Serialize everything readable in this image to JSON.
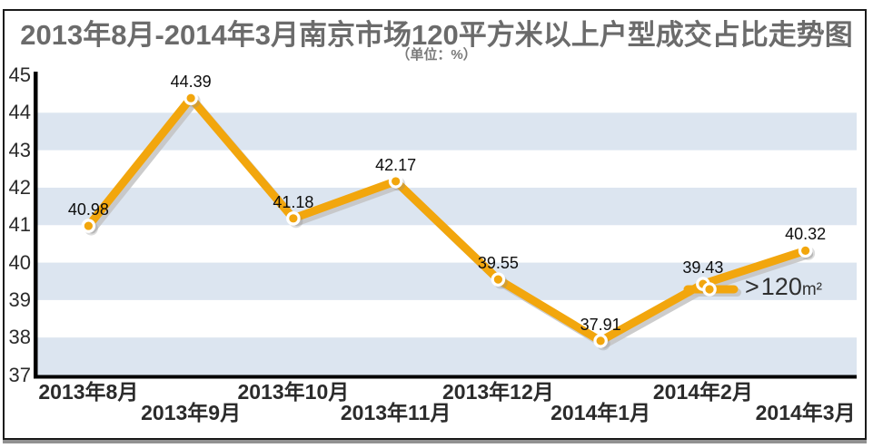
{
  "chart_data": {
    "type": "line",
    "title": "2013年8月-2014年3月南京市场120平方米以上户型成交占比走势图",
    "unit_label": "（单位：%）",
    "categories": [
      "2013年8月",
      "2013年9月",
      "2013年10月",
      "2013年11月",
      "2013年12月",
      "2014年1月",
      "2014年2月",
      "2014年3月"
    ],
    "series": [
      {
        "name": ">120m²",
        "values": [
          40.98,
          44.39,
          41.18,
          42.17,
          39.55,
          37.91,
          39.43,
          40.32
        ]
      }
    ],
    "value_labels": [
      "40.98",
      "44.39",
      "41.18",
      "42.17",
      "39.55",
      "37.91",
      "39.43",
      "40.32"
    ],
    "yticks": [
      45,
      44,
      43,
      42,
      41,
      40,
      39,
      38,
      37
    ],
    "ylim": [
      37,
      45
    ],
    "xlabel": "",
    "ylabel": "",
    "grid": "alternating-horizontal-bands",
    "legend_position": "inside-right-near-2014年2月-point",
    "colors": {
      "line": "#F2A60D",
      "line_shadow": "#C3C3C3",
      "band": "#DCE5F0",
      "axis": "#000000",
      "point_ring": "#FFFFFF",
      "title": "#6B6B6B",
      "tick_text": "#2B2B2B",
      "value_text": "#0D0D0D"
    }
  },
  "legend": {
    "symbol": ">",
    "value": "120",
    "unit": "m²"
  }
}
